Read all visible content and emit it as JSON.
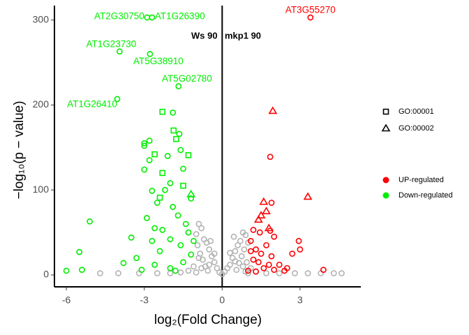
{
  "chart_data": {
    "type": "scatter",
    "x_label": "log₂(Fold Change)",
    "y_label": "−log₁₀(p − value)",
    "annotations": [
      "Ws 90",
      "mkp1 90"
    ],
    "vline": 0,
    "xlim": [
      -6.46,
      5.34
    ],
    "ylim": [
      -14,
      317
    ],
    "xticks": [
      -6,
      -3,
      0,
      3
    ],
    "yticks": [
      0,
      100,
      200,
      300
    ],
    "shape_legend": [
      {
        "name": "GO:00001",
        "shape": "square"
      },
      {
        "name": "GO:00002",
        "shape": "triangle"
      }
    ],
    "series": [
      {
        "color": "#b3b3b3",
        "x": [
          -0.9,
          -0.8,
          -1.0,
          -0.7,
          -0.5,
          -0.3,
          -0.1,
          0.1,
          0.3,
          0.5,
          0.7,
          0.8,
          0.9,
          1.0,
          0.6,
          -0.6,
          -0.4,
          0.4,
          -0.2,
          0.2,
          -0.95,
          -0.85,
          -0.75,
          -0.65,
          -0.55,
          0.55,
          0.65,
          0.75,
          0.85,
          0.95,
          -1.1,
          -1.3,
          -1.6,
          -2.0,
          -2.5,
          -3.2,
          -4.0,
          -4.7,
          1.1,
          1.3,
          1.7,
          2.2,
          2.8,
          3.3,
          3.8,
          4.3,
          4.6,
          -0.9,
          -0.8,
          0.8,
          0.9,
          -1.0,
          1.0,
          0,
          -0.5,
          0.5,
          0.45,
          -0.45,
          -0.3,
          0.3
        ],
        "values": [
          60,
          55,
          48,
          42,
          30,
          15,
          3,
          4,
          12,
          28,
          40,
          50,
          47,
          38,
          35,
          38,
          22,
          20,
          8,
          8,
          35,
          25,
          18,
          10,
          5,
          6,
          14,
          22,
          30,
          15,
          10,
          5,
          3,
          2,
          2,
          2,
          2,
          2,
          8,
          4,
          2,
          2,
          2,
          2,
          2,
          2,
          2,
          20,
          8,
          10,
          4,
          3,
          2,
          1,
          12,
          16,
          45,
          40,
          25,
          26
        ]
      },
      {
        "name": "UP-regulated",
        "color": "#ff0000",
        "x": [
          3.4,
          1.95,
          3.3,
          1.6,
          1.85,
          1.9,
          1.7,
          1.5,
          1.4,
          1.8,
          1.85,
          1.2,
          1.45,
          1.1,
          2.0,
          2.95,
          3.0,
          2.7,
          1.7,
          1.3,
          1.9,
          1.4,
          1.6,
          2.2,
          1.2,
          1.0,
          2.5,
          3.9,
          2.4,
          1.5,
          1.1,
          1.8,
          2.0,
          1.3
        ],
        "values": [
          303,
          193,
          92,
          86,
          139,
          85,
          75,
          70,
          65,
          55,
          52,
          53,
          50,
          40,
          45,
          40,
          30,
          25,
          35,
          30,
          22,
          15,
          8,
          12,
          18,
          5,
          8,
          6,
          5,
          25,
          28,
          12,
          6,
          4
        ],
        "shapes": [
          "circle",
          "triangle",
          "triangle",
          "triangle",
          "circle",
          "circle",
          "triangle",
          "triangle",
          "triangle",
          "triangle",
          "circle",
          "circle",
          "circle",
          "circle",
          "circle",
          "circle",
          "circle",
          "circle",
          "circle",
          "circle",
          "circle",
          "circle",
          "circle",
          "circle",
          "circle",
          "circle",
          "circle",
          "circle",
          "circle",
          "circle",
          "circle",
          "circle",
          "circle",
          "circle"
        ],
        "point_labels": [
          "AT3G55270",
          null,
          null,
          null,
          null,
          null,
          null,
          null,
          null,
          null,
          null,
          null,
          null,
          null,
          null,
          null,
          null,
          null,
          null,
          null,
          null,
          null,
          null,
          null,
          null,
          null,
          null,
          null,
          null,
          null,
          null,
          null,
          null,
          null
        ]
      },
      {
        "name": "Down-regulated",
        "color": "#00ee00",
        "x": [
          -2.89,
          -2.7,
          -3.95,
          -2.78,
          -1.68,
          -4.04,
          -2.3,
          -1.87,
          -1.77,
          -1.3,
          -2.6,
          -2.3,
          -1.5,
          -2.4,
          -1.9,
          -1.65,
          -3.0,
          -3.0,
          -2.8,
          -2.1,
          -1.6,
          -3.0,
          -2.8,
          -1.5,
          -2.0,
          -2.2,
          -2.7,
          -2.5,
          -1.9,
          -2.9,
          -2.6,
          -2.3,
          -1.4,
          -5.1,
          -3.5,
          -2.0,
          -1.6,
          -2.4,
          -3.3,
          -5.5,
          -1.2,
          -2.6,
          -3.8,
          -6.0,
          -5.4,
          -3.1,
          -2.0,
          -1.5,
          -1.1,
          -1.3,
          -1.7,
          -1.2,
          -1.8,
          -2.7,
          -1.2
        ],
        "values": [
          303,
          303,
          263,
          260,
          222,
          207,
          192,
          170,
          160,
          141,
          142,
          120,
          105,
          91,
          191,
          166,
          155,
          152,
          158,
          140,
          147,
          124,
          135,
          125,
          108,
          100,
          99,
          85,
          80,
          67,
          55,
          53,
          60,
          63,
          44,
          42,
          35,
          28,
          20,
          27,
          24,
          12,
          14,
          5,
          6,
          6,
          8,
          15,
          40,
          50,
          70,
          90,
          5,
          40,
          95
        ],
        "shapes": [
          "circle",
          "circle",
          "circle",
          "circle",
          "circle",
          "circle",
          "square",
          "square",
          "square",
          "square",
          "square",
          "square",
          "square",
          "square",
          "circle",
          "circle",
          "circle",
          "circle",
          "circle",
          "circle",
          "circle",
          "circle",
          "circle",
          "circle",
          "circle",
          "circle",
          "circle",
          "circle",
          "circle",
          "circle",
          "circle",
          "circle",
          "circle",
          "circle",
          "circle",
          "circle",
          "circle",
          "circle",
          "circle",
          "circle",
          "circle",
          "circle",
          "circle",
          "circle",
          "circle",
          "circle",
          "circle",
          "circle",
          "circle",
          "circle",
          "circle",
          "circle",
          "circle",
          "circle",
          "triangle"
        ],
        "point_labels": [
          "AT2G30750",
          "AT1G26390",
          "AT1G23730",
          "AT5G38910",
          "AT5G02780",
          "AT1G26410",
          null,
          null,
          null,
          null,
          null,
          null,
          null,
          null,
          null,
          null,
          null,
          null,
          null,
          null,
          null,
          null,
          null,
          null,
          null,
          null,
          null,
          null,
          null,
          null,
          null,
          null,
          null,
          null,
          null,
          null,
          null,
          null,
          null,
          null,
          null,
          null,
          null,
          null,
          null,
          null,
          null,
          null,
          null,
          null,
          null,
          null,
          null,
          null,
          null
        ]
      }
    ]
  }
}
